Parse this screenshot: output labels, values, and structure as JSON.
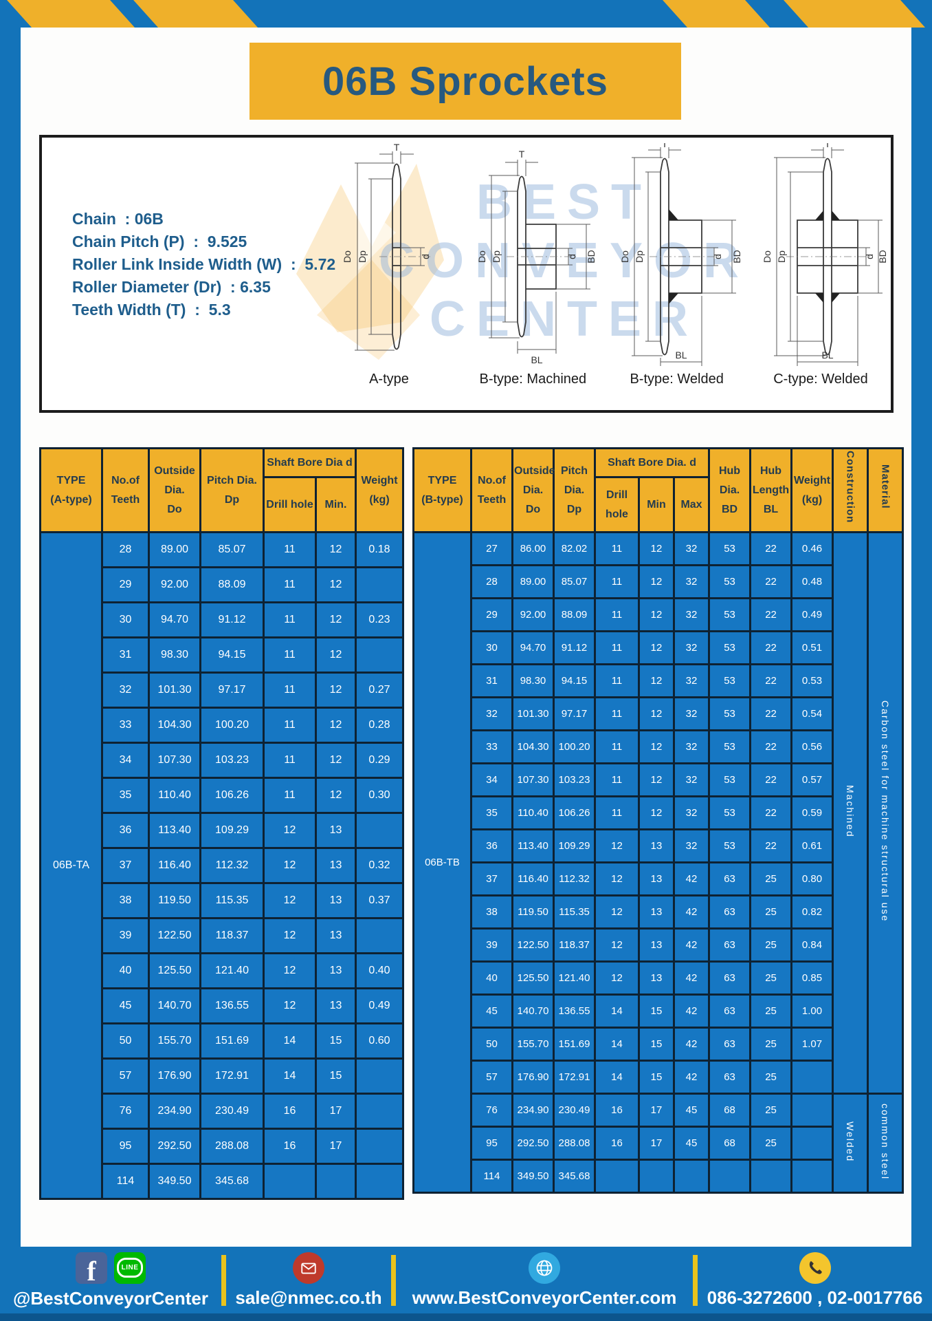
{
  "header": {
    "title": "06B Sprockets"
  },
  "specs": {
    "lines": [
      "Chain  : 06B",
      "Chain Pitch (P)  :  9.525",
      "Roller Link Inside Width (W)  :  5.72",
      "Roller Diameter (Dr)  : 6.35",
      "Teeth Width (T)  :  5.3"
    ]
  },
  "watermark": {
    "text": "BEST\nCONVEYOR\nCENTER"
  },
  "figures": {
    "labels": [
      "A-type",
      "B-type: Machined",
      "B-type: Welded",
      "C-type: Welded"
    ],
    "dims": {
      "t": "T",
      "do": "Do",
      "dp": "Dp",
      "d": "d",
      "bd": "BD",
      "bl": "BL"
    }
  },
  "table_a": {
    "type_label": "06B-TA",
    "headers": {
      "type": "TYPE\n(A-type)",
      "teeth": "No.of\nTeeth",
      "outside": "Outside\nDia.\nDo",
      "pitch": "Pitch Dia.\nDp",
      "shaft_bore": "Shaft Bore Dia d",
      "drill": "Drill hole",
      "min": "Min.",
      "weight": "Weight\n(kg)"
    },
    "rows": [
      [
        "28",
        "89.00",
        "85.07",
        "11",
        "12",
        "0.18"
      ],
      [
        "29",
        "92.00",
        "88.09",
        "11",
        "12",
        ""
      ],
      [
        "30",
        "94.70",
        "91.12",
        "11",
        "12",
        "0.23"
      ],
      [
        "31",
        "98.30",
        "94.15",
        "11",
        "12",
        ""
      ],
      [
        "32",
        "101.30",
        "97.17",
        "11",
        "12",
        "0.27"
      ],
      [
        "33",
        "104.30",
        "100.20",
        "11",
        "12",
        "0.28"
      ],
      [
        "34",
        "107.30",
        "103.23",
        "11",
        "12",
        "0.29"
      ],
      [
        "35",
        "110.40",
        "106.26",
        "11",
        "12",
        "0.30"
      ],
      [
        "36",
        "113.40",
        "109.29",
        "12",
        "13",
        ""
      ],
      [
        "37",
        "116.40",
        "112.32",
        "12",
        "13",
        "0.32"
      ],
      [
        "38",
        "119.50",
        "115.35",
        "12",
        "13",
        "0.37"
      ],
      [
        "39",
        "122.50",
        "118.37",
        "12",
        "13",
        ""
      ],
      [
        "40",
        "125.50",
        "121.40",
        "12",
        "13",
        "0.40"
      ],
      [
        "45",
        "140.70",
        "136.55",
        "12",
        "13",
        "0.49"
      ],
      [
        "50",
        "155.70",
        "151.69",
        "14",
        "15",
        "0.60"
      ],
      [
        "57",
        "176.90",
        "172.91",
        "14",
        "15",
        ""
      ],
      [
        "76",
        "234.90",
        "230.49",
        "16",
        "17",
        ""
      ],
      [
        "95",
        "292.50",
        "288.08",
        "16",
        "17",
        ""
      ],
      [
        "114",
        "349.50",
        "345.68",
        "",
        "",
        ""
      ]
    ]
  },
  "table_b": {
    "type_label": "06B-TB",
    "headers": {
      "type": "TYPE\n(B-type)",
      "teeth": "No.of\nTeeth",
      "outside": "Outside\nDia.\nDo",
      "pitch": "Pitch\nDia.\nDp",
      "shaft_bore": "Shaft Bore Dia. d",
      "drill": "Drill hole",
      "min": "Min",
      "max": "Max",
      "hub_dia": "Hub\nDia.\nBD",
      "hub_len": "Hub\nLength\nBL",
      "weight": "Weight\n(kg)",
      "construction": "Construction",
      "material": "Material"
    },
    "rows": [
      [
        "27",
        "86.00",
        "82.02",
        "11",
        "12",
        "32",
        "53",
        "22",
        "0.46"
      ],
      [
        "28",
        "89.00",
        "85.07",
        "11",
        "12",
        "32",
        "53",
        "22",
        "0.48"
      ],
      [
        "29",
        "92.00",
        "88.09",
        "11",
        "12",
        "32",
        "53",
        "22",
        "0.49"
      ],
      [
        "30",
        "94.70",
        "91.12",
        "11",
        "12",
        "32",
        "53",
        "22",
        "0.51"
      ],
      [
        "31",
        "98.30",
        "94.15",
        "11",
        "12",
        "32",
        "53",
        "22",
        "0.53"
      ],
      [
        "32",
        "101.30",
        "97.17",
        "11",
        "12",
        "32",
        "53",
        "22",
        "0.54"
      ],
      [
        "33",
        "104.30",
        "100.20",
        "11",
        "12",
        "32",
        "53",
        "22",
        "0.56"
      ],
      [
        "34",
        "107.30",
        "103.23",
        "11",
        "12",
        "32",
        "53",
        "22",
        "0.57"
      ],
      [
        "35",
        "110.40",
        "106.26",
        "11",
        "12",
        "32",
        "53",
        "22",
        "0.59"
      ],
      [
        "36",
        "113.40",
        "109.29",
        "12",
        "13",
        "32",
        "53",
        "22",
        "0.61"
      ],
      [
        "37",
        "116.40",
        "112.32",
        "12",
        "13",
        "42",
        "63",
        "25",
        "0.80"
      ],
      [
        "38",
        "119.50",
        "115.35",
        "12",
        "13",
        "42",
        "63",
        "25",
        "0.82"
      ],
      [
        "39",
        "122.50",
        "118.37",
        "12",
        "13",
        "42",
        "63",
        "25",
        "0.84"
      ],
      [
        "40",
        "125.50",
        "121.40",
        "12",
        "13",
        "42",
        "63",
        "25",
        "0.85"
      ],
      [
        "45",
        "140.70",
        "136.55",
        "14",
        "15",
        "42",
        "63",
        "25",
        "1.00"
      ],
      [
        "50",
        "155.70",
        "151.69",
        "14",
        "15",
        "42",
        "63",
        "25",
        "1.07"
      ],
      [
        "57",
        "176.90",
        "172.91",
        "14",
        "15",
        "42",
        "63",
        "25",
        ""
      ],
      [
        "76",
        "234.90",
        "230.49",
        "16",
        "17",
        "45",
        "68",
        "25",
        ""
      ],
      [
        "95",
        "292.50",
        "288.08",
        "16",
        "17",
        "45",
        "68",
        "25",
        ""
      ],
      [
        "114",
        "349.50",
        "345.68",
        "",
        "",
        "",
        "",
        "",
        ""
      ]
    ],
    "construction": [
      {
        "label": "Machined",
        "span": 17
      },
      {
        "label": "Welded",
        "span": 3
      }
    ],
    "material": [
      {
        "label": "Carbon steel for machine structural use",
        "span": 17
      },
      {
        "label": "common steel",
        "span": 3
      }
    ]
  },
  "footer": {
    "social_handle": "@BestConveyorCenter",
    "line_label": "LINE",
    "facebook_letter": "f",
    "email": "sale@nmec.co.th",
    "website": "www.BestConveyorCenter.com",
    "phones": "086-3272600 , 02-0017766"
  },
  "colors": {
    "brand_blue": "#1373b9",
    "table_blue": "#1677c3",
    "accent_yellow": "#f0b02a",
    "title_text": "#27597f",
    "border_dark": "#0e2233"
  }
}
